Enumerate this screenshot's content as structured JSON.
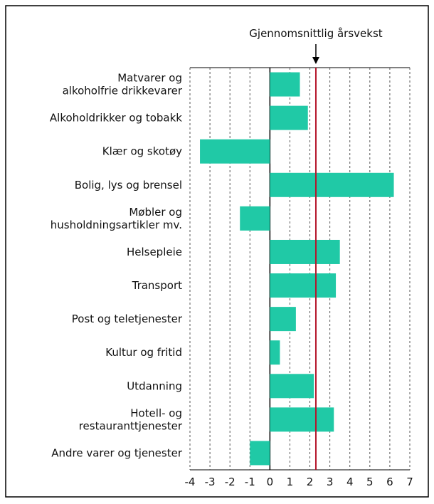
{
  "chart_data": {
    "type": "barh",
    "categories": [
      "Matvarer og\nalkoholfrie drikkevarer",
      "Alkoholdrikker og tobakk",
      "Klær og skotøy",
      "Bolig, lys og brensel",
      "Møbler og\nhusholdningsartikler mv.",
      "Helsepleie",
      "Transport",
      "Post og teletjenester",
      "Kultur og fritid",
      "Utdanning",
      "Hotell- og\nrestauranttjenester",
      "Andre varer og tjenester"
    ],
    "values": [
      1.5,
      1.9,
      -3.5,
      6.2,
      -1.5,
      3.5,
      3.3,
      1.3,
      0.5,
      2.2,
      3.2,
      -1.0
    ],
    "color": "#20c9a6",
    "xlim": [
      -4,
      7
    ],
    "xticks": [
      -4,
      -3,
      -2,
      -1,
      0,
      1,
      2,
      3,
      4,
      5,
      6,
      7
    ],
    "grid": true,
    "average": {
      "value": 2.3,
      "label": "Gjennomsnittlig årsvekst",
      "color": "#b5152b"
    }
  }
}
